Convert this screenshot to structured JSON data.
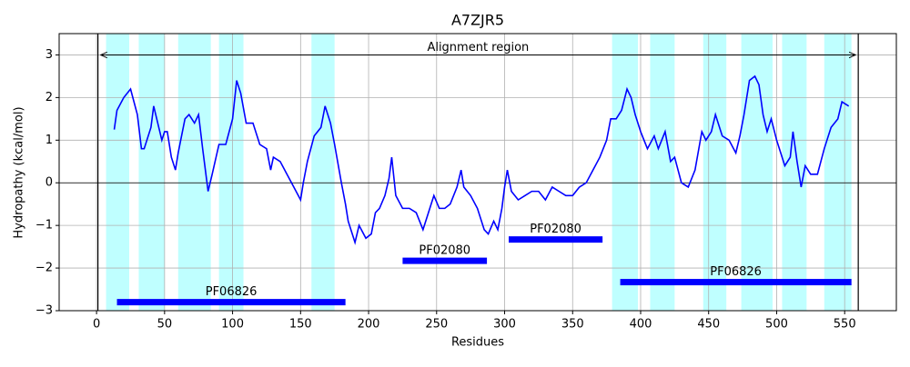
{
  "chart_data": {
    "type": "line",
    "title": "A7ZJR5",
    "x_label": "Residues",
    "y_label": "Hydropathy (kcal/mol)",
    "color": "#0000ff",
    "band_color": "#bfffff",
    "domain_color": "#0000ff",
    "xlim": [
      -27.5,
      588
    ],
    "ylim": [
      -3,
      3.5
    ],
    "xticks": [
      0,
      50,
      100,
      150,
      200,
      250,
      300,
      350,
      400,
      450,
      500,
      550
    ],
    "yticks": [
      {
        "value": -3,
        "label": "−3"
      },
      {
        "value": -2,
        "label": "−2"
      },
      {
        "value": -1,
        "label": "−1"
      },
      0,
      1,
      2,
      3
    ],
    "grid": true,
    "zero_line": 0,
    "vlines": [
      1,
      560
    ],
    "shaded_regions": [
      [
        7,
        24
      ],
      [
        31,
        50
      ],
      [
        60,
        84
      ],
      [
        90,
        108
      ],
      [
        158,
        175
      ],
      [
        379,
        398
      ],
      [
        407,
        425
      ],
      [
        446,
        463
      ],
      [
        474,
        497
      ],
      [
        504,
        522
      ],
      [
        535,
        555
      ]
    ],
    "annotation": {
      "text": "Alignment region",
      "start": 3,
      "end": 558,
      "y": 3
    },
    "domains": [
      {
        "label": "PF06826",
        "start": 15,
        "end": 183,
        "y": -2.8
      },
      {
        "label": "PF02080",
        "start": 225,
        "end": 287,
        "y": -1.83
      },
      {
        "label": "PF02080",
        "start": 303,
        "end": 372,
        "y": -1.33
      },
      {
        "label": "PF06826",
        "start": 385,
        "end": 555,
        "y": -2.33
      }
    ],
    "x": [
      13,
      15,
      20,
      25,
      30,
      33,
      35,
      40,
      42,
      45,
      48,
      50,
      52,
      55,
      58,
      60,
      65,
      68,
      72,
      75,
      78,
      82,
      85,
      90,
      93,
      95,
      100,
      103,
      106,
      110,
      115,
      120,
      125,
      128,
      130,
      135,
      140,
      145,
      150,
      152,
      155,
      160,
      165,
      168,
      172,
      175,
      180,
      183,
      185,
      190,
      193,
      198,
      202,
      205,
      208,
      212,
      215,
      217,
      220,
      225,
      230,
      235,
      240,
      245,
      248,
      252,
      256,
      260,
      265,
      268,
      270,
      275,
      280,
      285,
      288,
      292,
      295,
      298,
      300,
      302,
      305,
      310,
      315,
      320,
      325,
      330,
      335,
      340,
      345,
      350,
      355,
      360,
      365,
      370,
      375,
      378,
      382,
      386,
      390,
      393,
      396,
      400,
      405,
      410,
      413,
      418,
      422,
      425,
      430,
      435,
      440,
      445,
      448,
      452,
      455,
      460,
      465,
      470,
      473,
      476,
      480,
      484,
      487,
      490,
      493,
      496,
      500,
      503,
      506,
      510,
      512,
      515,
      518,
      521,
      525,
      530,
      535,
      540,
      545,
      548,
      553
    ],
    "values": [
      1.25,
      1.7,
      2.0,
      2.2,
      1.6,
      0.8,
      0.8,
      1.3,
      1.8,
      1.4,
      1.0,
      1.2,
      1.2,
      0.6,
      0.3,
      0.7,
      1.5,
      1.6,
      1.4,
      1.6,
      0.8,
      -0.2,
      0.2,
      0.9,
      0.9,
      0.9,
      1.5,
      2.4,
      2.1,
      1.4,
      1.4,
      0.9,
      0.8,
      0.3,
      0.6,
      0.5,
      0.2,
      -0.1,
      -0.4,
      0.0,
      0.5,
      1.1,
      1.3,
      1.8,
      1.4,
      0.9,
      0.0,
      -0.5,
      -0.9,
      -1.4,
      -1.0,
      -1.3,
      -1.2,
      -0.7,
      -0.6,
      -0.3,
      0.1,
      0.6,
      -0.3,
      -0.6,
      -0.6,
      -0.7,
      -1.1,
      -0.6,
      -0.3,
      -0.6,
      -0.6,
      -0.5,
      -0.1,
      0.3,
      -0.1,
      -0.3,
      -0.6,
      -1.1,
      -1.2,
      -0.9,
      -1.1,
      -0.6,
      -0.1,
      0.3,
      -0.2,
      -0.4,
      -0.3,
      -0.2,
      -0.2,
      -0.4,
      -0.1,
      -0.2,
      -0.3,
      -0.3,
      -0.1,
      0.0,
      0.3,
      0.6,
      1.0,
      1.5,
      1.5,
      1.7,
      2.2,
      2.0,
      1.6,
      1.2,
      0.8,
      1.1,
      0.8,
      1.2,
      0.5,
      0.6,
      0.0,
      -0.1,
      0.3,
      1.2,
      1.0,
      1.2,
      1.6,
      1.1,
      1.0,
      0.7,
      1.1,
      1.6,
      2.4,
      2.5,
      2.3,
      1.6,
      1.2,
      1.5,
      1.0,
      0.7,
      0.4,
      0.6,
      1.2,
      0.5,
      -0.1,
      0.4,
      0.2,
      0.2,
      0.8,
      1.3,
      1.5,
      1.9,
      1.8
    ]
  }
}
